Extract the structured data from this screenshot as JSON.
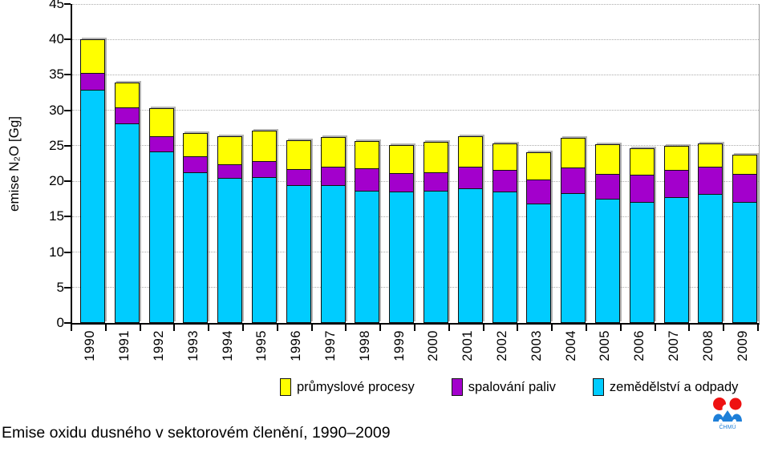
{
  "figure": {
    "caption": "Emise oxidu dusného v sektorovém členění, 1990–2009",
    "logo_text": "ČHMÚ"
  },
  "chart_data": {
    "type": "bar",
    "stacked": true,
    "title": "",
    "xlabel": "",
    "ylabel": "emise N₂O [Gg]",
    "ylim": [
      0,
      45
    ],
    "ytick_step": 5,
    "grid": "horizontal-dotted",
    "legend_position": "bottom",
    "categories": [
      "1990",
      "1991",
      "1992",
      "1993",
      "1994",
      "1995",
      "1996",
      "1997",
      "1998",
      "1999",
      "2000",
      "2001",
      "2002",
      "2003",
      "2004",
      "2005",
      "2006",
      "2007",
      "2008",
      "2009"
    ],
    "series": [
      {
        "name": "zemědělství a odpady",
        "color": "#00CCFF",
        "values": [
          32.9,
          28.2,
          24.2,
          21.3,
          20.5,
          20.6,
          19.4,
          19.5,
          18.7,
          18.5,
          18.6,
          19.0,
          18.5,
          16.8,
          18.3,
          17.5,
          17.1,
          17.7,
          18.2,
          17.1
        ]
      },
      {
        "name": "spalování paliv",
        "color": "#A300CC",
        "values": [
          2.4,
          2.2,
          2.1,
          2.2,
          1.9,
          2.2,
          2.3,
          2.5,
          3.1,
          2.6,
          2.6,
          3.0,
          3.1,
          3.4,
          3.6,
          3.5,
          3.8,
          3.9,
          3.8,
          3.9
        ]
      },
      {
        "name": "průmyslové procesy",
        "color": "#FFFF00",
        "values": [
          4.7,
          3.5,
          4.0,
          3.3,
          4.0,
          4.3,
          4.1,
          4.2,
          3.9,
          4.0,
          4.3,
          4.3,
          3.7,
          3.9,
          4.2,
          4.2,
          3.8,
          3.4,
          3.3,
          2.7
        ]
      }
    ],
    "legend_order": [
      2,
      1,
      0
    ]
  }
}
